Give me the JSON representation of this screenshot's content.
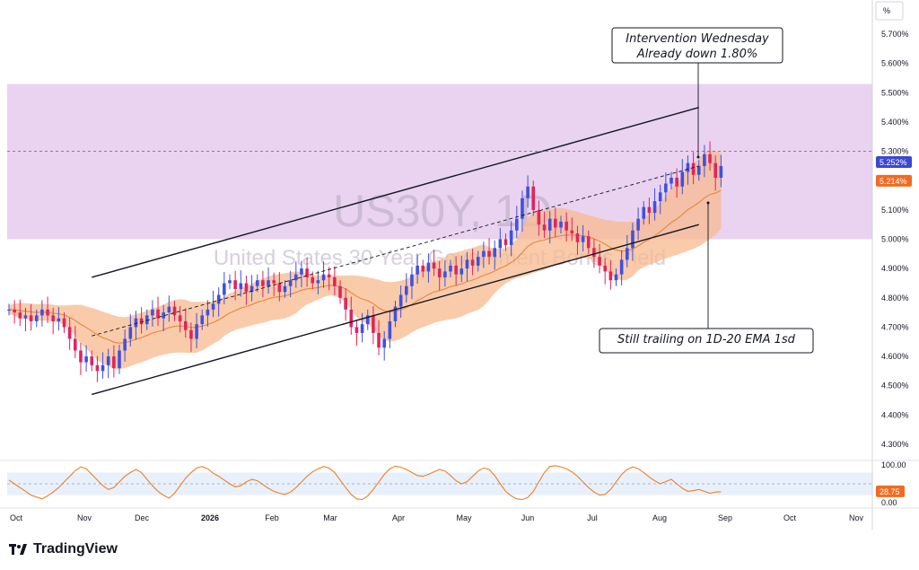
{
  "chart_data": [
    {
      "type": "candlestick",
      "watermark_symbol": "US30Y, 1D",
      "watermark_name": "United States 30 Year Government Bonds Yield",
      "y_unit": "%",
      "y_ticks": [
        "5.700%",
        "5.600%",
        "5.500%",
        "5.400%",
        "5.300%",
        "5.100%",
        "5.000%",
        "4.900%",
        "4.800%",
        "4.700%",
        "4.600%",
        "4.500%",
        "4.400%",
        "4.300%"
      ],
      "ylim": [
        4.26,
        5.78
      ],
      "x_labels": [
        "Oct",
        "Nov",
        "Dec",
        "2026",
        "Feb",
        "Mar",
        "Apr",
        "May",
        "Jun",
        "Jul",
        "Aug",
        "Sep",
        "Oct",
        "Nov"
      ],
      "last_price_label": "5.252%",
      "ema_label": "5.214%",
      "resistance_zone": [
        5.0,
        5.53
      ],
      "channel_upper": [
        [
          15,
          4.87
        ],
        [
          125,
          5.45
        ]
      ],
      "channel_lower": [
        [
          15,
          4.47
        ],
        [
          125,
          5.05
        ]
      ],
      "channel_mid": [
        [
          15,
          4.67
        ],
        [
          125,
          5.25
        ]
      ],
      "price_line": 5.3,
      "annotations": [
        {
          "lines": [
            "Intervention Wednesday",
            "Already down 1.80%"
          ]
        },
        {
          "lines": [
            "Still trailing on 1D-20 EMA 1sd"
          ]
        }
      ],
      "series": [
        {
          "type": "candlestick",
          "start_index": 0,
          "close": [
            4.76,
            4.75,
            4.73,
            4.74,
            4.72,
            4.74,
            4.76,
            4.74,
            4.72,
            4.73,
            4.7,
            4.66,
            4.62,
            4.58,
            4.6,
            4.57,
            4.55,
            4.57,
            4.6,
            4.56,
            4.62,
            4.66,
            4.7,
            4.73,
            4.71,
            4.74,
            4.76,
            4.73,
            4.75,
            4.77,
            4.74,
            4.72,
            4.69,
            4.66,
            4.71,
            4.74,
            4.76,
            4.78,
            4.81,
            4.85,
            4.86,
            4.83,
            4.85,
            4.82,
            4.84,
            4.86,
            4.84,
            4.86,
            4.85,
            4.82,
            4.84,
            4.86,
            4.88,
            4.9,
            4.87,
            4.85,
            4.86,
            4.88,
            4.87,
            4.84,
            4.8,
            4.76,
            4.7,
            4.68,
            4.71,
            4.74,
            4.68,
            4.63,
            4.66,
            4.72,
            4.77,
            4.81,
            4.84,
            4.88,
            4.91,
            4.89,
            4.92,
            4.9,
            4.87,
            4.89,
            4.91,
            4.88,
            4.9,
            4.93,
            4.91,
            4.94,
            4.96,
            4.94,
            4.97,
            5.0,
            4.98,
            5.03,
            5.07,
            5.14,
            5.18,
            5.1,
            5.05,
            5.03,
            5.07,
            5.04,
            5.06,
            5.03,
            5.02,
            4.99,
            5.01,
            4.97,
            4.94,
            4.91,
            4.89,
            4.86,
            4.88,
            4.93,
            4.97,
            5.03,
            5.07,
            5.11,
            5.09,
            5.13,
            5.16,
            5.19,
            5.21,
            5.18,
            5.23,
            5.26,
            5.22,
            5.25,
            5.29,
            5.26,
            5.21,
            5.25
          ]
        },
        {
          "type": "oscillator",
          "ylim": [
            0,
            100
          ],
          "y_ticks": [
            "100.00",
            "0.00"
          ],
          "band": [
            20,
            80
          ],
          "last_label": "28.75",
          "values": [
            60,
            50,
            40,
            30,
            20,
            15,
            10,
            18,
            28,
            40,
            55,
            70,
            85,
            95,
            90,
            75,
            60,
            45,
            35,
            40,
            55,
            70,
            80,
            88,
            80,
            62,
            45,
            30,
            20,
            12,
            25,
            45,
            65,
            80,
            92,
            96,
            90,
            78,
            70,
            60,
            50,
            42,
            45,
            55,
            62,
            58,
            48,
            38,
            30,
            25,
            22,
            28,
            40,
            55,
            70,
            82,
            90,
            96,
            92,
            80,
            60,
            40,
            22,
            10,
            8,
            18,
            35,
            55,
            75,
            90,
            97,
            94,
            88,
            80,
            72,
            70,
            75,
            82,
            88,
            84,
            72,
            58,
            50,
            56,
            70,
            84,
            92,
            88,
            72,
            50,
            30,
            18,
            10,
            8,
            14,
            30,
            55,
            80,
            96,
            98,
            95,
            90,
            82,
            70,
            55,
            40,
            28,
            20,
            22,
            35,
            55,
            75,
            88,
            95,
            90,
            80,
            68,
            58,
            50,
            56,
            62,
            50,
            38,
            30,
            32,
            35,
            30,
            25,
            28,
            29
          ]
        }
      ]
    }
  ]
}
